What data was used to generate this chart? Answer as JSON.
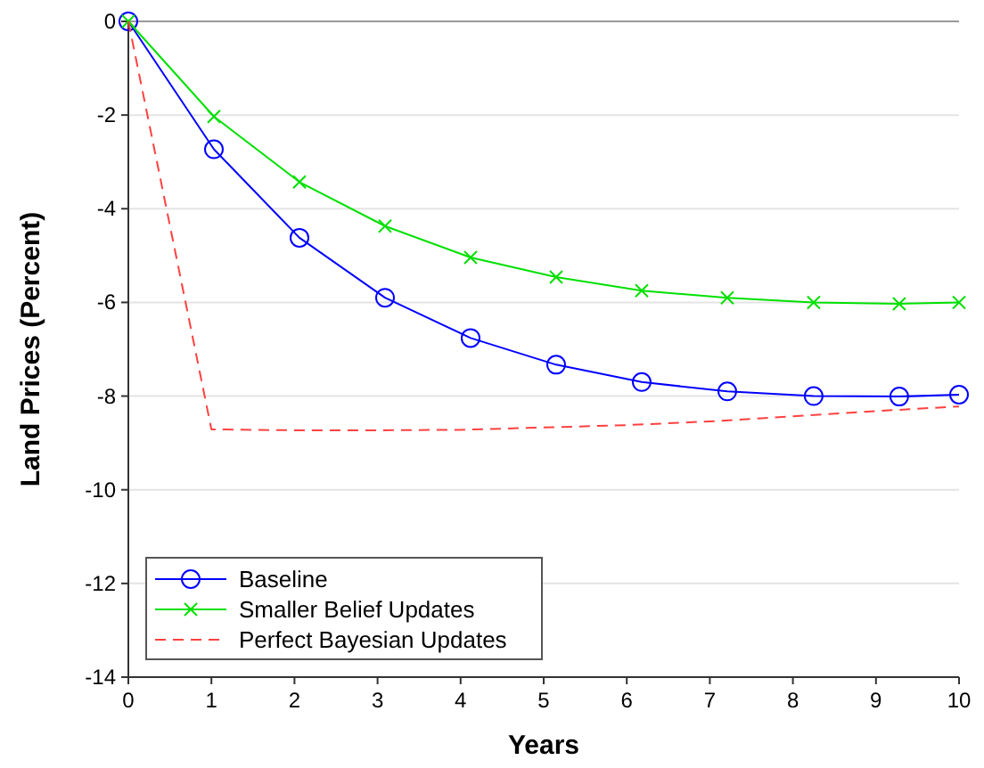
{
  "chart_data": {
    "type": "line",
    "xlabel": "Years",
    "ylabel": "Land Prices (Percent)",
    "xlim": [
      0,
      10
    ],
    "xticks": [
      0,
      1,
      2,
      3,
      4,
      5,
      6,
      7,
      8,
      9,
      10
    ],
    "ylim": [
      -14,
      0
    ],
    "yticks": [
      -14,
      -12,
      -10,
      -8,
      -6,
      -4,
      -2,
      0
    ],
    "grid": "y",
    "legend": "bottom left",
    "series": [
      {
        "name": "Baseline",
        "color": "#0000ff",
        "marker": "circle",
        "line_style": "solid",
        "x": [
          0,
          1.03,
          2.06,
          3.09,
          4.12,
          5.15,
          6.18,
          7.21,
          8.25,
          9.28,
          10
        ],
        "values": [
          0,
          -2.73,
          -4.62,
          -5.9,
          -6.76,
          -7.33,
          -7.7,
          -7.9,
          -8.0,
          -8.01,
          -7.97
        ]
      },
      {
        "name": "Smaller Belief Updates",
        "color": "#00e000",
        "marker": "cross",
        "line_style": "solid",
        "x": [
          0,
          1.03,
          2.06,
          3.09,
          4.12,
          5.15,
          6.18,
          7.21,
          8.25,
          9.28,
          10
        ],
        "values": [
          0,
          -2.03,
          -3.43,
          -4.37,
          -5.04,
          -5.46,
          -5.75,
          -5.9,
          -6.0,
          -6.03,
          -6.0
        ]
      },
      {
        "name": "Perfect Bayesian Updates",
        "color": "#ff4040",
        "marker": "none",
        "line_style": "dashed",
        "x": [
          0,
          1,
          2,
          3,
          4,
          5,
          6,
          7,
          8,
          9,
          10
        ],
        "values": [
          0,
          -8.71,
          -8.73,
          -8.73,
          -8.72,
          -8.67,
          -8.62,
          -8.54,
          -8.43,
          -8.32,
          -8.22
        ]
      }
    ]
  }
}
